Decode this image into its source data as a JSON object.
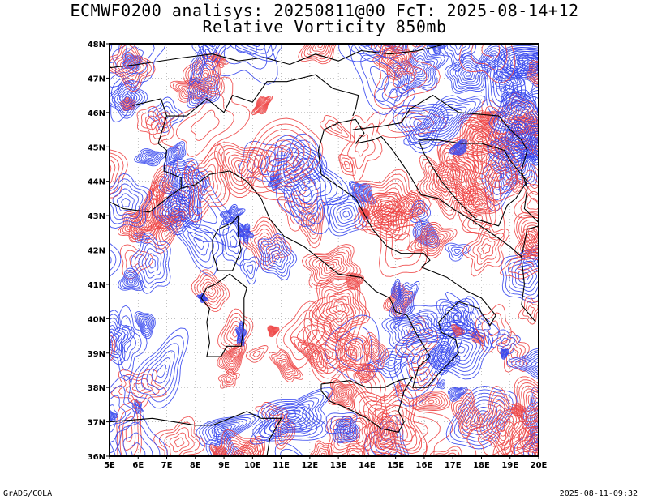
{
  "title_line1": "ECMWF0200 analisys: 20250811@00 FcT: 2025-08-14+12",
  "title_line2": "Relative Vorticity 850mb",
  "footer_left": "GrADS/COLA",
  "footer_right": "2025-08-11-09:32",
  "map": {
    "lon_range": [
      5,
      20
    ],
    "lat_range": [
      36,
      48
    ],
    "lon_ticks": [
      "5E",
      "6E",
      "7E",
      "8E",
      "9E",
      "10E",
      "11E",
      "12E",
      "13E",
      "14E",
      "15E",
      "16E",
      "17E",
      "18E",
      "19E",
      "20E"
    ],
    "lat_ticks": [
      "36N",
      "37N",
      "38N",
      "39N",
      "40N",
      "41N",
      "42N",
      "43N",
      "44N",
      "45N",
      "46N",
      "47N",
      "48N"
    ],
    "colors": {
      "positive": "#ee4444",
      "negative": "#3344ee",
      "coast": "#000000",
      "grid": "#999999"
    }
  }
}
